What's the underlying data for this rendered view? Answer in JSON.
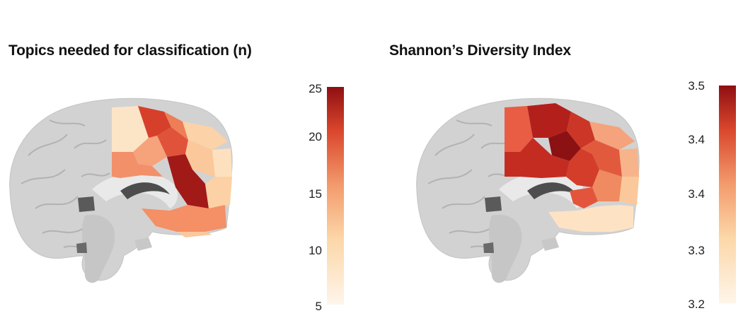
{
  "panels": [
    {
      "title": "Topics needed for classification (n)",
      "colorbar": {
        "ticks": [
          "25",
          "20",
          "15",
          "10",
          "5"
        ],
        "min": 5,
        "max": 25,
        "colors": [
          "#fef5ea",
          "#fcd7a8",
          "#f39a6c",
          "#d9462c",
          "#8e0f12"
        ]
      }
    },
    {
      "title": "Shannon’s Diversity Index",
      "colorbar": {
        "ticks": [
          "3.5",
          "3.4",
          "3.4",
          "3.3",
          "3.2"
        ],
        "min": 3.2,
        "max": 3.5,
        "colors": [
          "#fef5ea",
          "#fcd7a8",
          "#f39a6c",
          "#d9462c",
          "#8e0f12"
        ]
      }
    }
  ]
}
